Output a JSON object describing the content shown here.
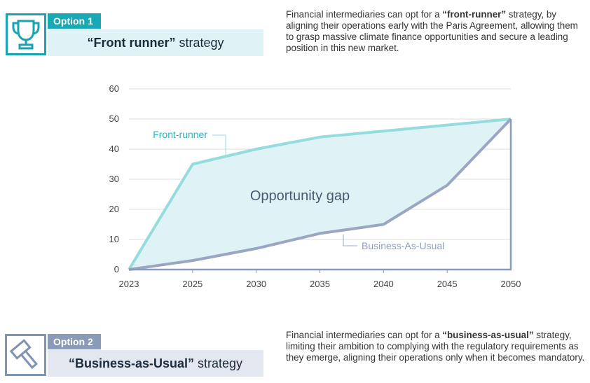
{
  "option1": {
    "tag": "Option 1",
    "title_bold": "“Front runner”",
    "title_rest": " strategy",
    "desc_pre": "Financial intermediaries can opt for a ",
    "desc_bold": "“front-runner”",
    "desc_post": " strategy, by aligning their operations early with the Paris Agreement, allowing them to grasp massive climate finance opportunities and secure a leading position in this new market.",
    "icon": "trophy-icon",
    "color": "#19a9b4"
  },
  "option2": {
    "tag": "Option 2",
    "title_bold": "“Business-as-Usual”",
    "title_rest": " strategy",
    "desc_pre": "Financial intermediaries can opt for a ",
    "desc_bold": "“business-as-usual”",
    "desc_post": " strategy, limiting their ambition to complying with the regulatory requirements as they emerge, aligning their operations only when it becomes mandatory.",
    "icon": "gavel-icon",
    "color": "#8a9bba"
  },
  "chart_data": {
    "type": "area",
    "title": "",
    "xlabel": "",
    "ylabel": "",
    "x": [
      2023,
      2025,
      2030,
      2035,
      2040,
      2045,
      2050
    ],
    "ylim": [
      0,
      60
    ],
    "yticks": [
      0,
      10,
      20,
      30,
      40,
      50,
      60
    ],
    "series": [
      {
        "name": "Front-runner",
        "values": [
          0,
          35,
          40,
          44,
          46,
          48,
          50
        ],
        "color": "#95dcdf"
      },
      {
        "name": "Business-As-Usual",
        "values": [
          0,
          3,
          7,
          12,
          15,
          28,
          50
        ],
        "color": "#9aa7c3"
      }
    ],
    "fill_color": "#dff3f6",
    "gap_label": "Opportunity gap",
    "grid": true
  }
}
